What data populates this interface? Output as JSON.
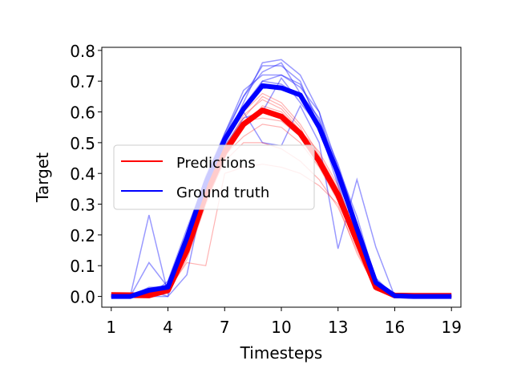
{
  "chart_data": {
    "type": "line",
    "title": "",
    "xlabel": "Timesteps",
    "ylabel": "Target",
    "xlim": [
      0.5,
      19.5
    ],
    "ylim": [
      -0.035,
      0.81
    ],
    "xticks": [
      1,
      4,
      7,
      10,
      13,
      16,
      19
    ],
    "yticks": [
      0.0,
      0.1,
      0.2,
      0.3,
      0.4,
      0.5,
      0.6,
      0.7,
      0.8
    ],
    "ytick_labels": [
      "0.0",
      "0.1",
      "0.2",
      "0.3",
      "0.4",
      "0.5",
      "0.6",
      "0.7",
      "0.8"
    ],
    "grid": false,
    "legend_position": "center-left",
    "colors": {
      "predictions": "#ff0000",
      "ground_truth": "#0000ff"
    },
    "x": [
      1,
      2,
      3,
      4,
      5,
      6,
      7,
      8,
      9,
      10,
      11,
      12,
      13,
      14,
      15,
      16,
      17,
      18,
      19
    ],
    "series": [
      {
        "name": "Predictions",
        "role": "mean",
        "values": [
          0.005,
          0.004,
          0.003,
          0.02,
          0.15,
          0.33,
          0.47,
          0.56,
          0.605,
          0.585,
          0.53,
          0.44,
          0.33,
          0.18,
          0.03,
          0.003,
          0.002,
          0.002,
          0.002
        ]
      },
      {
        "name": "Ground truth",
        "role": "mean",
        "values": [
          0.0,
          0.0,
          0.02,
          0.03,
          0.19,
          0.37,
          0.51,
          0.61,
          0.685,
          0.678,
          0.655,
          0.55,
          0.4,
          0.22,
          0.045,
          0.002,
          0.0,
          0.0,
          0.0
        ]
      }
    ],
    "individual_predictions": [
      [
        0.005,
        0.004,
        0.0,
        0.01,
        0.12,
        0.3,
        0.45,
        0.55,
        0.62,
        0.6,
        0.54,
        0.45,
        0.34,
        0.19,
        0.03,
        0.003,
        0.002,
        0.002,
        0.002
      ],
      [
        0.006,
        0.003,
        0.005,
        0.02,
        0.14,
        0.34,
        0.48,
        0.58,
        0.65,
        0.62,
        0.55,
        0.43,
        0.32,
        0.17,
        0.025,
        0.003,
        0.002,
        0.002,
        0.002
      ],
      [
        0.004,
        0.004,
        0.002,
        0.03,
        0.16,
        0.32,
        0.46,
        0.52,
        0.56,
        0.55,
        0.5,
        0.42,
        0.31,
        0.16,
        0.03,
        0.002,
        0.002,
        0.002,
        0.002
      ],
      [
        0.005,
        0.005,
        0.004,
        0.015,
        0.13,
        0.36,
        0.5,
        0.6,
        0.66,
        0.63,
        0.56,
        0.46,
        0.35,
        0.2,
        0.035,
        0.003,
        0.002,
        0.002,
        0.002
      ],
      [
        0.005,
        0.004,
        0.003,
        0.02,
        0.17,
        0.31,
        0.44,
        0.5,
        0.5,
        0.48,
        0.44,
        0.38,
        0.29,
        0.15,
        0.02,
        0.002,
        0.002,
        0.002,
        0.002
      ],
      [
        0.004,
        0.003,
        0.003,
        0.025,
        0.15,
        0.35,
        0.49,
        0.57,
        0.58,
        0.57,
        0.52,
        0.44,
        0.34,
        0.19,
        0.03,
        0.003,
        0.002,
        0.002,
        0.002
      ],
      [
        0.005,
        0.004,
        0.002,
        0.02,
        0.11,
        0.1,
        0.4,
        0.42,
        0.43,
        0.42,
        0.4,
        0.36,
        0.3,
        0.14,
        0.025,
        0.003,
        0.002,
        0.002,
        0.002
      ],
      [
        0.005,
        0.004,
        0.003,
        0.02,
        0.16,
        0.33,
        0.48,
        0.59,
        0.64,
        0.61,
        0.54,
        0.47,
        0.36,
        0.2,
        0.03,
        0.003,
        0.002,
        0.002,
        0.002
      ]
    ],
    "individual_ground_truth": [
      [
        0.0,
        0.0,
        0.0,
        0.0,
        0.2,
        0.38,
        0.53,
        0.65,
        0.75,
        0.75,
        0.7,
        0.55,
        0.4,
        0.22,
        0.04,
        0.0,
        0.0,
        0.0,
        0.0
      ],
      [
        0.0,
        0.0,
        0.265,
        0.01,
        0.18,
        0.36,
        0.5,
        0.6,
        0.7,
        0.69,
        0.65,
        0.55,
        0.4,
        0.2,
        0.05,
        0.0,
        0.0,
        0.0,
        0.0
      ],
      [
        0.0,
        0.0,
        0.11,
        0.03,
        0.2,
        0.37,
        0.52,
        0.65,
        0.73,
        0.76,
        0.66,
        0.58,
        0.38,
        0.24,
        0.04,
        0.0,
        0.0,
        0.0,
        0.0
      ],
      [
        0.0,
        0.0,
        0.0,
        0.05,
        0.22,
        0.38,
        0.5,
        0.63,
        0.76,
        0.77,
        0.72,
        0.6,
        0.42,
        0.26,
        0.05,
        0.0,
        0.0,
        0.0,
        0.0
      ],
      [
        0.0,
        0.0,
        0.02,
        0.0,
        0.07,
        0.36,
        0.5,
        0.6,
        0.5,
        0.49,
        0.62,
        0.5,
        0.155,
        0.38,
        0.16,
        0.0,
        0.0,
        0.0,
        0.0
      ],
      [
        0.0,
        0.0,
        0.01,
        0.04,
        0.19,
        0.39,
        0.53,
        0.67,
        0.72,
        0.72,
        0.68,
        0.6,
        0.37,
        0.22,
        0.04,
        0.0,
        0.0,
        0.0,
        0.0
      ],
      [
        0.0,
        0.0,
        0.0,
        0.02,
        0.17,
        0.35,
        0.49,
        0.58,
        0.6,
        0.71,
        0.63,
        0.55,
        0.36,
        0.19,
        0.04,
        0.0,
        0.0,
        0.0,
        0.0
      ],
      [
        0.0,
        0.0,
        0.03,
        0.03,
        0.19,
        0.37,
        0.52,
        0.62,
        0.7,
        0.72,
        0.69,
        0.57,
        0.43,
        0.24,
        0.06,
        0.0,
        0.0,
        0.0,
        0.0
      ]
    ]
  }
}
